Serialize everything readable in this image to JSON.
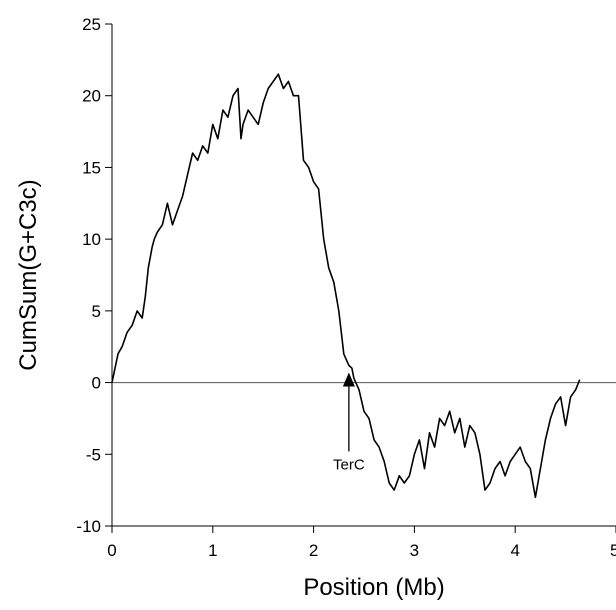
{
  "chart_data": {
    "type": "line",
    "title": "",
    "xlabel": "Position (Mb)",
    "ylabel": "CumSum(G+C3c)",
    "xlim": [
      0,
      5
    ],
    "ylim": [
      -10,
      25
    ],
    "xticks": [
      0,
      1,
      2,
      3,
      4,
      5
    ],
    "xtick_labels": [
      "0",
      "1",
      "2",
      "3",
      "4",
      "5"
    ],
    "yticks": [
      -10,
      -5,
      0,
      5,
      10,
      15,
      20,
      25
    ],
    "ytick_labels": [
      "-10",
      "-5",
      "0",
      "5",
      "10",
      "15",
      "20",
      "25"
    ],
    "grid": false,
    "reference_line_y": 0,
    "annotation": {
      "text": "TerC",
      "x": 2.35,
      "y_tip": 0.7,
      "y_tail": -4.8
    },
    "series": [
      {
        "color": "#000000",
        "x": [
          0.0,
          0.03,
          0.06,
          0.1,
          0.15,
          0.2,
          0.25,
          0.3,
          0.33,
          0.36,
          0.4,
          0.42,
          0.45,
          0.5,
          0.55,
          0.6,
          0.65,
          0.7,
          0.75,
          0.8,
          0.85,
          0.9,
          0.95,
          1.0,
          1.05,
          1.1,
          1.15,
          1.2,
          1.25,
          1.28,
          1.3,
          1.35,
          1.4,
          1.45,
          1.5,
          1.55,
          1.6,
          1.65,
          1.7,
          1.75,
          1.8,
          1.85,
          1.9,
          1.95,
          2.0,
          2.05,
          2.1,
          2.15,
          2.2,
          2.25,
          2.3,
          2.33,
          2.35,
          2.38,
          2.4,
          2.45,
          2.5,
          2.55,
          2.6,
          2.65,
          2.7,
          2.75,
          2.8,
          2.85,
          2.9,
          2.95,
          3.0,
          3.05,
          3.1,
          3.15,
          3.2,
          3.25,
          3.3,
          3.35,
          3.4,
          3.45,
          3.5,
          3.55,
          3.6,
          3.65,
          3.7,
          3.75,
          3.8,
          3.85,
          3.9,
          3.95,
          4.0,
          4.05,
          4.1,
          4.15,
          4.2,
          4.25,
          4.3,
          4.35,
          4.4,
          4.45,
          4.5,
          4.55,
          4.6,
          4.64
        ],
        "y": [
          0.0,
          1.0,
          2.0,
          2.5,
          3.5,
          4.0,
          5.0,
          4.5,
          6.0,
          8.0,
          9.5,
          10.0,
          10.5,
          11.0,
          12.5,
          11.0,
          12.0,
          13.0,
          14.5,
          16.0,
          15.5,
          16.5,
          16.0,
          18.0,
          17.0,
          19.0,
          18.5,
          20.0,
          20.5,
          17.0,
          18.0,
          19.0,
          18.5,
          18.0,
          19.5,
          20.5,
          21.0,
          21.5,
          20.5,
          21.0,
          20.0,
          20.0,
          15.5,
          15.0,
          14.0,
          13.5,
          10.0,
          8.0,
          7.0,
          5.0,
          2.0,
          1.5,
          1.2,
          1.0,
          0.3,
          -0.5,
          -2.0,
          -2.5,
          -4.0,
          -4.5,
          -5.5,
          -7.0,
          -7.5,
          -6.5,
          -7.0,
          -6.5,
          -5.0,
          -4.0,
          -6.0,
          -3.5,
          -4.5,
          -2.5,
          -3.0,
          -2.0,
          -3.5,
          -2.5,
          -4.5,
          -3.0,
          -3.5,
          -5.0,
          -7.5,
          -7.0,
          -6.0,
          -5.5,
          -6.5,
          -5.5,
          -5.0,
          -4.5,
          -5.5,
          -6.0,
          -8.0,
          -6.0,
          -4.0,
          -2.5,
          -1.5,
          -1.0,
          -3.0,
          -1.0,
          -0.5,
          0.2
        ]
      }
    ]
  }
}
